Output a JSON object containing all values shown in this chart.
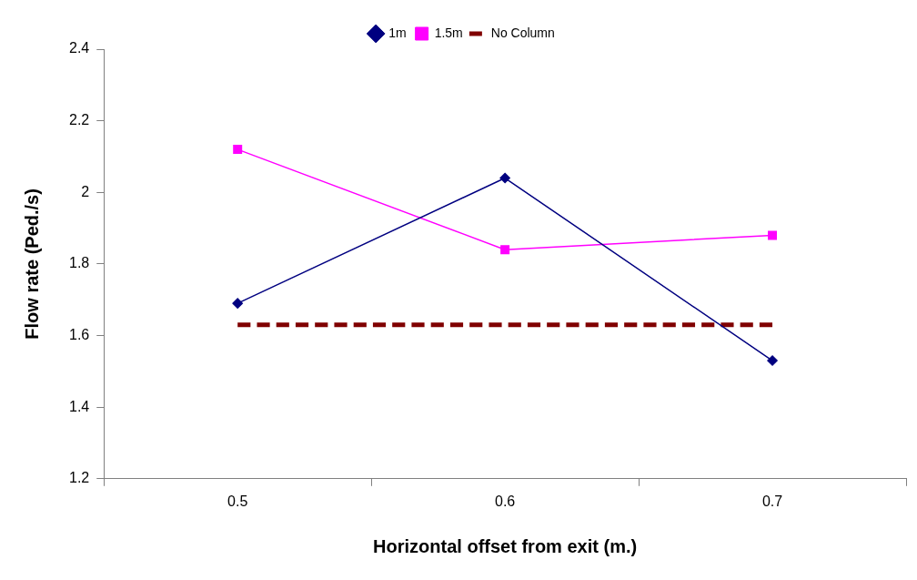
{
  "chart_data": {
    "type": "line",
    "xlabel": "Horizontal offset from exit (m.)",
    "ylabel": "Flow rate (Ped./s)",
    "categories": [
      "0.5",
      "0.6",
      "0.7"
    ],
    "series": [
      {
        "name": "1m",
        "color": "#000080",
        "values": [
          1.69,
          2.04,
          1.53
        ],
        "marker": "diamond"
      },
      {
        "name": "1.5m",
        "color": "#ff00ff",
        "values": [
          2.12,
          1.84,
          1.88
        ],
        "marker": "square"
      },
      {
        "name": "No Column",
        "color": "#800000",
        "values": [
          1.63,
          1.63,
          1.63
        ],
        "marker": "none",
        "line_style": "dashed"
      }
    ],
    "ylim": [
      1.2,
      2.4
    ],
    "yticks": [
      1.2,
      1.4,
      1.6,
      1.8,
      2,
      2.2,
      2.4
    ],
    "grid": false,
    "legend": "top"
  }
}
